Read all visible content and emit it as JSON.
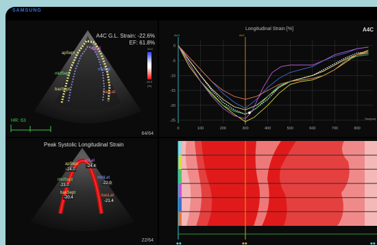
{
  "app": {
    "brand": "SAMSUNG"
  },
  "top_left": {
    "strain_label": "A4C G.L. Strain: -22.6%",
    "ef_label": "EF: 61.8%",
    "hr_label": "HR: 63",
    "frame_counter": "64/64",
    "colorbar_top": "20.0",
    "colorbar_bottom": "-20.0",
    "colorbar_unit": "(%)",
    "segments": [
      "apSept",
      "apLat",
      "midSept",
      "midLat",
      "basSept",
      "basLat"
    ]
  },
  "top_right": {
    "title": "Longitudinal Strain [%]",
    "view_label": "A4C",
    "markers": {
      "avo": "AVO",
      "avc": "AVC"
    },
    "x_unit": "Time[ms]",
    "chart_data": {
      "type": "line",
      "x_ticks": [
        0,
        100,
        200,
        300,
        400,
        500,
        600,
        700,
        800
      ],
      "y_ticks": [
        0,
        -5,
        -10,
        -15,
        -20,
        -25
      ],
      "xlim": [
        0,
        870
      ],
      "ylim": [
        -26,
        2
      ],
      "avc_x": 300,
      "series": [
        {
          "color": "#ffffff",
          "dashed": true,
          "points": [
            [
              0,
              0
            ],
            [
              50,
              -5
            ],
            [
              100,
              -10
            ],
            [
              150,
              -15
            ],
            [
              200,
              -19
            ],
            [
              250,
              -21.5
            ],
            [
              300,
              -23
            ],
            [
              330,
              -22
            ],
            [
              400,
              -18
            ],
            [
              450,
              -14
            ],
            [
              500,
              -12
            ],
            [
              550,
              -11
            ],
            [
              600,
              -10
            ],
            [
              650,
              -8
            ],
            [
              700,
              -6
            ],
            [
              750,
              -4
            ],
            [
              800,
              -2.5
            ],
            [
              850,
              -2
            ]
          ]
        },
        {
          "color": "#d7dc3c",
          "points": [
            [
              0,
              0
            ],
            [
              50,
              -7
            ],
            [
              100,
              -12
            ],
            [
              150,
              -16
            ],
            [
              200,
              -20
            ],
            [
              250,
              -23
            ],
            [
              300,
              -25.5
            ],
            [
              340,
              -24
            ],
            [
              400,
              -20
            ],
            [
              450,
              -16
            ],
            [
              500,
              -13
            ],
            [
              550,
              -12
            ],
            [
              600,
              -11.5
            ],
            [
              650,
              -10
            ],
            [
              700,
              -8
            ],
            [
              750,
              -5.5
            ],
            [
              800,
              -3
            ],
            [
              850,
              -1.5
            ]
          ]
        },
        {
          "color": "#e8e8a0",
          "points": [
            [
              0,
              0
            ],
            [
              50,
              -5
            ],
            [
              100,
              -10
            ],
            [
              150,
              -14.5
            ],
            [
              200,
              -18
            ],
            [
              250,
              -20.5
            ],
            [
              300,
              -21.5
            ],
            [
              350,
              -20
            ],
            [
              400,
              -17
            ],
            [
              450,
              -14
            ],
            [
              500,
              -12
            ],
            [
              550,
              -11
            ],
            [
              600,
              -10
            ],
            [
              650,
              -8.5
            ],
            [
              700,
              -6.5
            ],
            [
              750,
              -4.5
            ],
            [
              800,
              -3
            ],
            [
              850,
              -2.5
            ]
          ]
        },
        {
          "color": "#4cc46a",
          "points": [
            [
              0,
              0
            ],
            [
              50,
              -6
            ],
            [
              100,
              -12
            ],
            [
              150,
              -16.5
            ],
            [
              200,
              -20
            ],
            [
              250,
              -22
            ],
            [
              300,
              -23
            ],
            [
              350,
              -21
            ],
            [
              400,
              -17
            ],
            [
              450,
              -13.5
            ],
            [
              500,
              -12
            ],
            [
              550,
              -11.5
            ],
            [
              600,
              -11
            ],
            [
              650,
              -10
            ],
            [
              700,
              -8
            ],
            [
              750,
              -5
            ],
            [
              800,
              -3.5
            ],
            [
              850,
              -3
            ]
          ]
        },
        {
          "color": "#3f6cd8",
          "points": [
            [
              0,
              0
            ],
            [
              50,
              -4
            ],
            [
              100,
              -8
            ],
            [
              150,
              -12
            ],
            [
              200,
              -16
            ],
            [
              250,
              -19
            ],
            [
              300,
              -21
            ],
            [
              350,
              -18
            ],
            [
              400,
              -14
            ],
            [
              450,
              -11
            ],
            [
              500,
              -9
            ],
            [
              550,
              -8
            ],
            [
              600,
              -7
            ],
            [
              650,
              -5
            ],
            [
              700,
              -3.5
            ],
            [
              750,
              -2.5
            ],
            [
              800,
              -1
            ],
            [
              850,
              -0.5
            ]
          ]
        },
        {
          "color": "#c05ad6",
          "points": [
            [
              0,
              0
            ],
            [
              50,
              -6
            ],
            [
              100,
              -12
            ],
            [
              150,
              -17
            ],
            [
              200,
              -21
            ],
            [
              250,
              -23.5
            ],
            [
              300,
              -24.5
            ],
            [
              330,
              -22
            ],
            [
              380,
              -14
            ],
            [
              420,
              -9
            ],
            [
              460,
              -7
            ],
            [
              500,
              -6.5
            ],
            [
              550,
              -6.5
            ],
            [
              600,
              -6.5
            ],
            [
              650,
              -5
            ],
            [
              700,
              -3
            ],
            [
              750,
              -2
            ],
            [
              800,
              -1
            ],
            [
              850,
              -0.5
            ]
          ]
        },
        {
          "color": "#e3744a",
          "points": [
            [
              0,
              0
            ],
            [
              50,
              -4
            ],
            [
              100,
              -8
            ],
            [
              150,
              -12
            ],
            [
              200,
              -15
            ],
            [
              250,
              -17
            ],
            [
              300,
              -18
            ],
            [
              350,
              -17
            ],
            [
              400,
              -15
            ],
            [
              450,
              -13
            ],
            [
              500,
              -12
            ],
            [
              550,
              -11.5
            ],
            [
              600,
              -11
            ],
            [
              650,
              -10
            ],
            [
              700,
              -8
            ],
            [
              750,
              -5
            ],
            [
              800,
              -3
            ],
            [
              850,
              -2
            ]
          ]
        }
      ]
    }
  },
  "bottom_left": {
    "title": "Peak Systolic Longitudinal Strain",
    "frame_counter": "22/64",
    "labels": [
      {
        "name": "apSept",
        "value": "-24.0"
      },
      {
        "name": "apLat",
        "value": "-24.4"
      },
      {
        "name": "midSept",
        "value": "-23.0"
      },
      {
        "name": "midLat",
        "value": "-22.0"
      },
      {
        "name": "basSept",
        "value": "-20.4"
      },
      {
        "name": "basLat",
        "value": "-21.4"
      }
    ]
  },
  "bottom_right": {
    "type": "heatmap",
    "rows": 6,
    "row_colors": [
      "#8fd8e0",
      "#d7dc3c",
      "#4cc46a",
      "#c05ad6",
      "#3f6cd8",
      "#e3744a"
    ]
  },
  "colors": {
    "accent_orange": "#e0a020",
    "cyan": "#38d0e0"
  }
}
